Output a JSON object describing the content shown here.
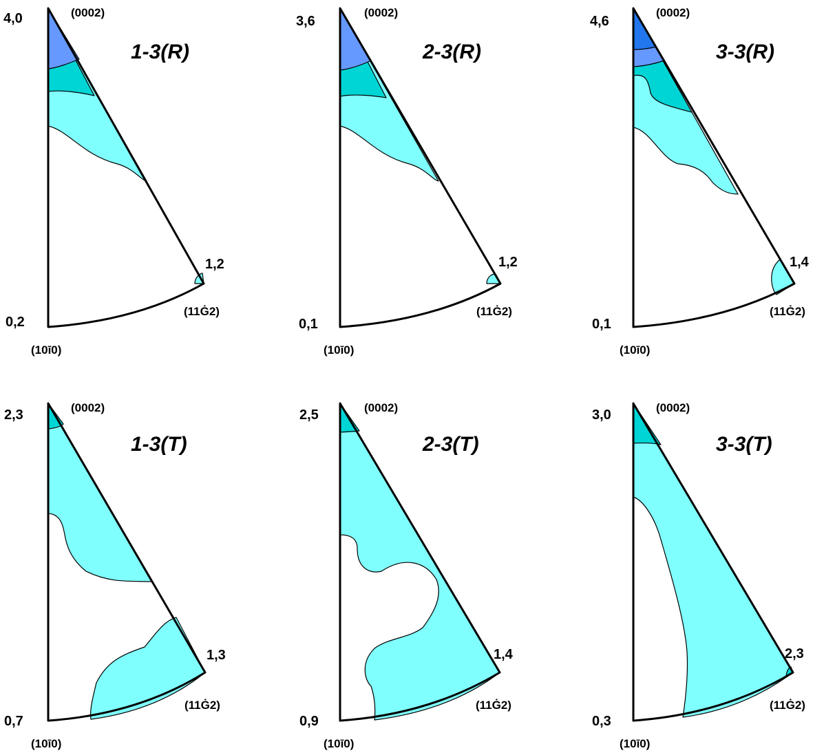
{
  "colors": {
    "background": "#ffffff",
    "outline": "#000000",
    "level_light": "#80ffff",
    "level_mid": "#00d5d5",
    "level_blue_light": "#6699ff",
    "level_blue_dark": "#2277ee"
  },
  "pole_labels": {
    "top": "(0002)",
    "bottom_left": "(10ī0)",
    "bottom_right": "(11Ġ2)"
  },
  "panels": [
    {
      "title": "1-3(R)",
      "max_value": "4,0",
      "min_value": "0,2",
      "corner_value": "1,2",
      "contour_colors": [
        "level_light",
        "level_mid",
        "level_blue_light"
      ]
    },
    {
      "title": "2-3(R)",
      "max_value": "3,6",
      "min_value": "0,1",
      "corner_value": "1,2",
      "contour_colors": [
        "level_light",
        "level_mid",
        "level_blue_light"
      ]
    },
    {
      "title": "3-3(R)",
      "max_value": "4,6",
      "min_value": "0,1",
      "corner_value": "1,4",
      "contour_colors": [
        "level_light",
        "level_mid",
        "level_blue_light",
        "level_blue_dark"
      ]
    },
    {
      "title": "1-3(T)",
      "max_value": "2,3",
      "min_value": "0,7",
      "corner_value": "1,3",
      "contour_colors": [
        "level_light",
        "level_mid"
      ]
    },
    {
      "title": "2-3(T)",
      "max_value": "2,5",
      "min_value": "0,9",
      "corner_value": "1,4",
      "contour_colors": [
        "level_light",
        "level_mid"
      ]
    },
    {
      "title": "3-3(T)",
      "max_value": "3,0",
      "min_value": "0,3",
      "corner_value": "2,3",
      "contour_colors": [
        "level_light",
        "level_mid"
      ]
    }
  ]
}
